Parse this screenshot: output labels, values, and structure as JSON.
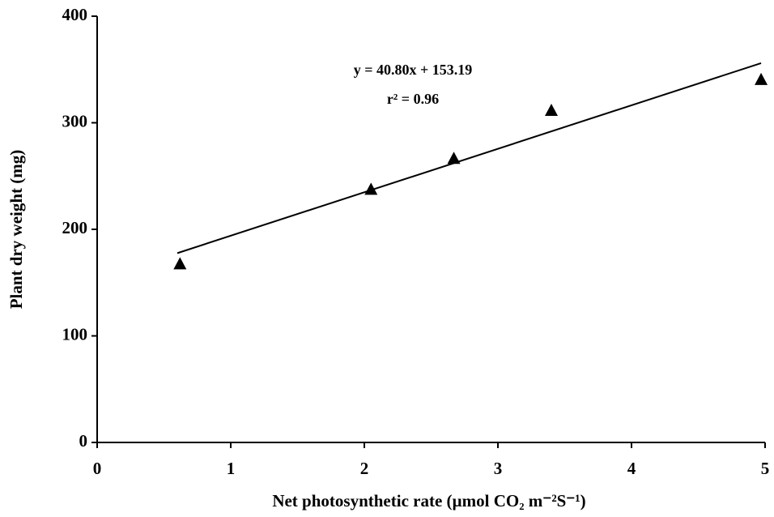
{
  "chart_data": {
    "type": "scatter",
    "x_label": "Net photosynthetic rate (µmol CO₂ m⁻²S⁻¹)",
    "y_label": "Plant dry weight (mg)",
    "annotations": [
      "y = 40.80x + 153.19",
      "r² = 0.96"
    ],
    "x": [
      0.62,
      2.05,
      2.67,
      3.4,
      4.97
    ],
    "values": [
      167,
      237,
      266,
      311,
      340
    ],
    "color": "#000000",
    "trend_line": {
      "x": [
        0.6,
        4.97
      ],
      "values": [
        177.67,
        355.97
      ]
    },
    "xlim": [
      0,
      5
    ],
    "xticks": [
      0,
      1,
      2,
      3,
      4,
      5
    ],
    "ylim": [
      0,
      400
    ],
    "yticks": [
      0,
      100,
      200,
      300,
      400
    ]
  }
}
